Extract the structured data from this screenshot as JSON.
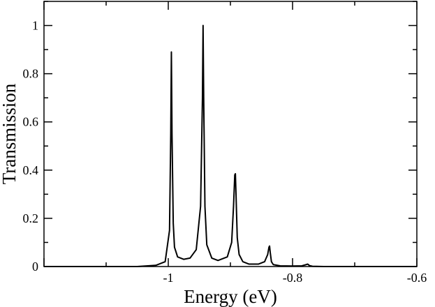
{
  "chart_data": {
    "type": "line",
    "title": "",
    "xlabel": "Energy  (eV)",
    "ylabel": "Transmission",
    "xlim": [
      -1.2,
      -0.6
    ],
    "ylim": [
      0,
      1.1
    ],
    "x_ticks": [
      -1,
      -0.8,
      -0.6
    ],
    "x_tick_labels": [
      "-1",
      "-0.8",
      "-0.6"
    ],
    "y_ticks": [
      0,
      0.2,
      0.4,
      0.6,
      0.8,
      1
    ],
    "y_tick_labels": [
      "0",
      "0.2",
      "0.4",
      "0.6",
      "0.8",
      "1"
    ],
    "grid": false,
    "line_color": "#000000",
    "series": [
      {
        "x": [
          -1.2,
          -1.05,
          -1.02,
          -1.005,
          -0.998,
          -0.996,
          -0.995,
          -0.994,
          -0.992,
          -0.99,
          -0.985,
          -0.975,
          -0.965,
          -0.955,
          -0.948,
          -0.945,
          -0.944,
          -0.943,
          -0.941,
          -0.938,
          -0.93,
          -0.92,
          -0.905,
          -0.898,
          -0.895,
          -0.893,
          -0.892,
          -0.891,
          -0.889,
          -0.886,
          -0.88,
          -0.87,
          -0.855,
          -0.845,
          -0.84,
          -0.838,
          -0.837,
          -0.836,
          -0.834,
          -0.831,
          -0.82,
          -0.8,
          -0.785,
          -0.778,
          -0.776,
          -0.775,
          -0.773,
          -0.768,
          -0.75,
          -0.6
        ],
        "y": [
          0,
          0,
          0.005,
          0.02,
          0.15,
          0.55,
          0.89,
          0.55,
          0.18,
          0.08,
          0.04,
          0.03,
          0.035,
          0.07,
          0.25,
          0.7,
          1.0,
          0.7,
          0.25,
          0.09,
          0.035,
          0.025,
          0.04,
          0.1,
          0.25,
          0.38,
          0.385,
          0.3,
          0.12,
          0.05,
          0.02,
          0.01,
          0.01,
          0.02,
          0.05,
          0.08,
          0.085,
          0.06,
          0.02,
          0.008,
          0.003,
          0.002,
          0.003,
          0.008,
          0.01,
          0.009,
          0.004,
          0.001,
          0,
          0
        ]
      }
    ]
  }
}
